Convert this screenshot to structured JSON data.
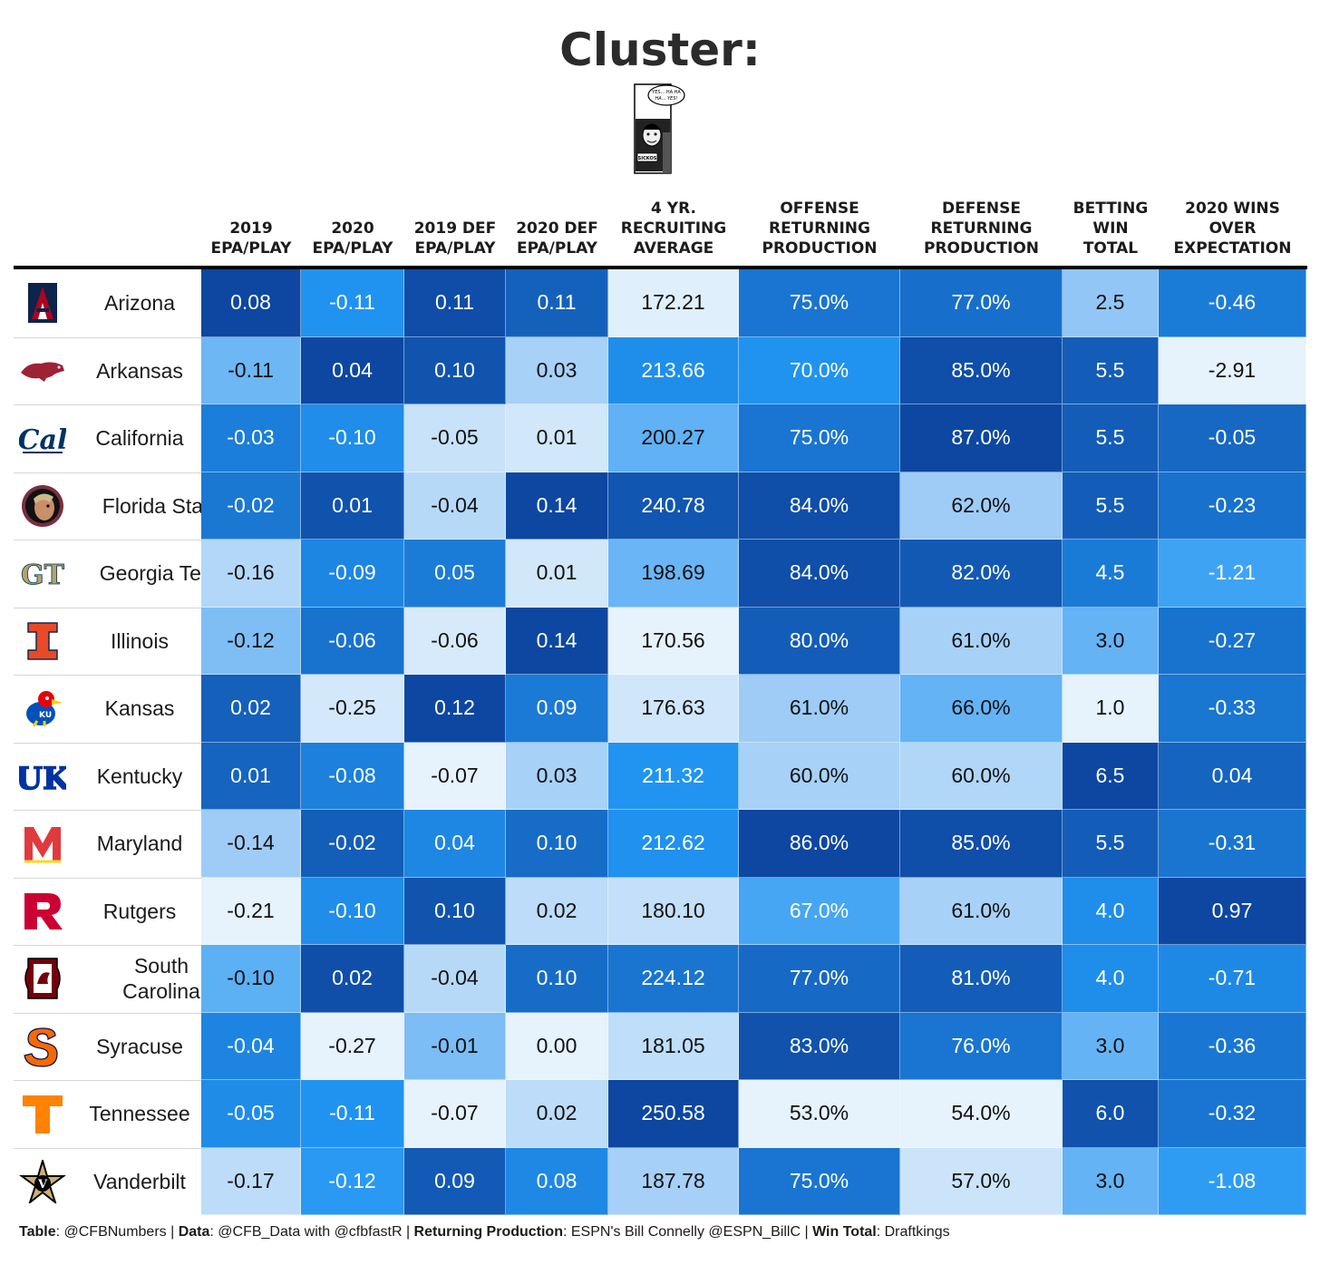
{
  "title": "Cluster:",
  "comic": {
    "speech": [
      "YES... HA HA",
      "HA... YES!"
    ],
    "sign": "SICKOS"
  },
  "columns": [
    {
      "key": "epa2019",
      "label": [
        "2019",
        "EPA/PLAY"
      ]
    },
    {
      "key": "epa2020",
      "label": [
        "2020",
        "EPA/PLAY"
      ]
    },
    {
      "key": "def2019",
      "label": [
        "2019 DEF",
        "EPA/PLAY"
      ]
    },
    {
      "key": "def2020",
      "label": [
        "2020 DEF",
        "EPA/PLAY"
      ]
    },
    {
      "key": "recruit",
      "label": [
        "4 YR.",
        "RECRUITING",
        "AVERAGE"
      ]
    },
    {
      "key": "off_ret",
      "label": [
        "OFFENSE",
        "RETURNING",
        "PRODUCTION"
      ]
    },
    {
      "key": "def_ret",
      "label": [
        "DEFENSE",
        "RETURNING",
        "PRODUCTION"
      ]
    },
    {
      "key": "win_total",
      "label": [
        "BETTING",
        "WIN",
        "TOTAL"
      ]
    },
    {
      "key": "wins_over",
      "label": [
        "2020 WINS",
        "OVER",
        "EXPECTATION"
      ]
    }
  ],
  "chart_data": {
    "type": "table",
    "title": "Cluster:",
    "rows": [
      {
        "team": "Arizona",
        "logo": "arizona-logo",
        "values": [
          "0.08",
          "-0.11",
          "0.11",
          "0.11",
          "172.21",
          "75.0%",
          "77.0%",
          "2.5",
          "-0.46"
        ]
      },
      {
        "team": "Arkansas",
        "logo": "arkansas-logo",
        "values": [
          "-0.11",
          "0.04",
          "0.10",
          "0.03",
          "213.66",
          "70.0%",
          "85.0%",
          "5.5",
          "-2.91"
        ]
      },
      {
        "team": "California",
        "logo": "california-logo",
        "values": [
          "-0.03",
          "-0.10",
          "-0.05",
          "0.01",
          "200.27",
          "75.0%",
          "87.0%",
          "5.5",
          "-0.05"
        ]
      },
      {
        "team": "Florida State",
        "logo": "florida-state-logo",
        "values": [
          "-0.02",
          "0.01",
          "-0.04",
          "0.14",
          "240.78",
          "84.0%",
          "62.0%",
          "5.5",
          "-0.23"
        ]
      },
      {
        "team": "Georgia Tech",
        "logo": "georgia-tech-logo",
        "values": [
          "-0.16",
          "-0.09",
          "0.05",
          "0.01",
          "198.69",
          "84.0%",
          "82.0%",
          "4.5",
          "-1.21"
        ]
      },
      {
        "team": "Illinois",
        "logo": "illinois-logo",
        "values": [
          "-0.12",
          "-0.06",
          "-0.06",
          "0.14",
          "170.56",
          "80.0%",
          "61.0%",
          "3.0",
          "-0.27"
        ]
      },
      {
        "team": "Kansas",
        "logo": "kansas-logo",
        "values": [
          "0.02",
          "-0.25",
          "0.12",
          "0.09",
          "176.63",
          "61.0%",
          "66.0%",
          "1.0",
          "-0.33"
        ]
      },
      {
        "team": "Kentucky",
        "logo": "kentucky-logo",
        "values": [
          "0.01",
          "-0.08",
          "-0.07",
          "0.03",
          "211.32",
          "60.0%",
          "60.0%",
          "6.5",
          "0.04"
        ]
      },
      {
        "team": "Maryland",
        "logo": "maryland-logo",
        "values": [
          "-0.14",
          "-0.02",
          "0.04",
          "0.10",
          "212.62",
          "86.0%",
          "85.0%",
          "5.5",
          "-0.31"
        ]
      },
      {
        "team": "Rutgers",
        "logo": "rutgers-logo",
        "values": [
          "-0.21",
          "-0.10",
          "0.10",
          "0.02",
          "180.10",
          "67.0%",
          "61.0%",
          "4.0",
          "0.97"
        ]
      },
      {
        "team": "South Carolina",
        "logo": "south-carolina-logo",
        "values": [
          "-0.10",
          "0.02",
          "-0.04",
          "0.10",
          "224.12",
          "77.0%",
          "81.0%",
          "4.0",
          "-0.71"
        ]
      },
      {
        "team": "Syracuse",
        "logo": "syracuse-logo",
        "values": [
          "-0.04",
          "-0.27",
          "-0.01",
          "0.00",
          "181.05",
          "83.0%",
          "76.0%",
          "3.0",
          "-0.36"
        ]
      },
      {
        "team": "Tennessee",
        "logo": "tennessee-logo",
        "values": [
          "-0.05",
          "-0.11",
          "-0.07",
          "0.02",
          "250.58",
          "53.0%",
          "54.0%",
          "6.0",
          "-0.32"
        ]
      },
      {
        "team": "Vanderbilt",
        "logo": "vanderbilt-logo",
        "values": [
          "-0.17",
          "-0.12",
          "0.09",
          "0.08",
          "187.78",
          "75.0%",
          "57.0%",
          "3.0",
          "-1.08"
        ]
      }
    ],
    "color_scale": [
      "#e6f2fc",
      "#9ccbf6",
      "#2196f3",
      "#1565c0",
      "#0d47a1"
    ]
  },
  "team_colors": {
    "arizona-logo": [
      "#0c234b",
      "#ab0520"
    ],
    "arkansas-logo": [
      "#9d2235",
      "#ffffff"
    ],
    "california-logo": [
      "#003262",
      "#fdb515"
    ],
    "florida-state-logo": [
      "#782f40",
      "#ceb888"
    ],
    "georgia-tech-logo": [
      "#b3a369",
      "#003057"
    ],
    "illinois-logo": [
      "#e84a27",
      "#13294b"
    ],
    "kansas-logo": [
      "#0051ba",
      "#e8000d"
    ],
    "kentucky-logo": [
      "#0033a0",
      "#ffffff"
    ],
    "maryland-logo": [
      "#e03a3e",
      "#ffd520"
    ],
    "rutgers-logo": [
      "#cc0033",
      "#ffffff"
    ],
    "south-carolina-logo": [
      "#73000a",
      "#000000"
    ],
    "syracuse-logo": [
      "#f76900",
      "#000e54"
    ],
    "tennessee-logo": [
      "#ff8200",
      "#ffffff"
    ],
    "vanderbilt-logo": [
      "#000000",
      "#cfae70"
    ]
  },
  "footer": {
    "table_label": "Table",
    "table_value": ": @CFBNumbers | ",
    "data_label": "Data",
    "data_value": ": @CFB_Data with @cfbfastR | ",
    "ret_label": "Returning Production",
    "ret_value": ": ESPN's Bill Connelly @ESPN_BillC | ",
    "win_label": "Win Total",
    "win_value": ": Draftkings"
  }
}
